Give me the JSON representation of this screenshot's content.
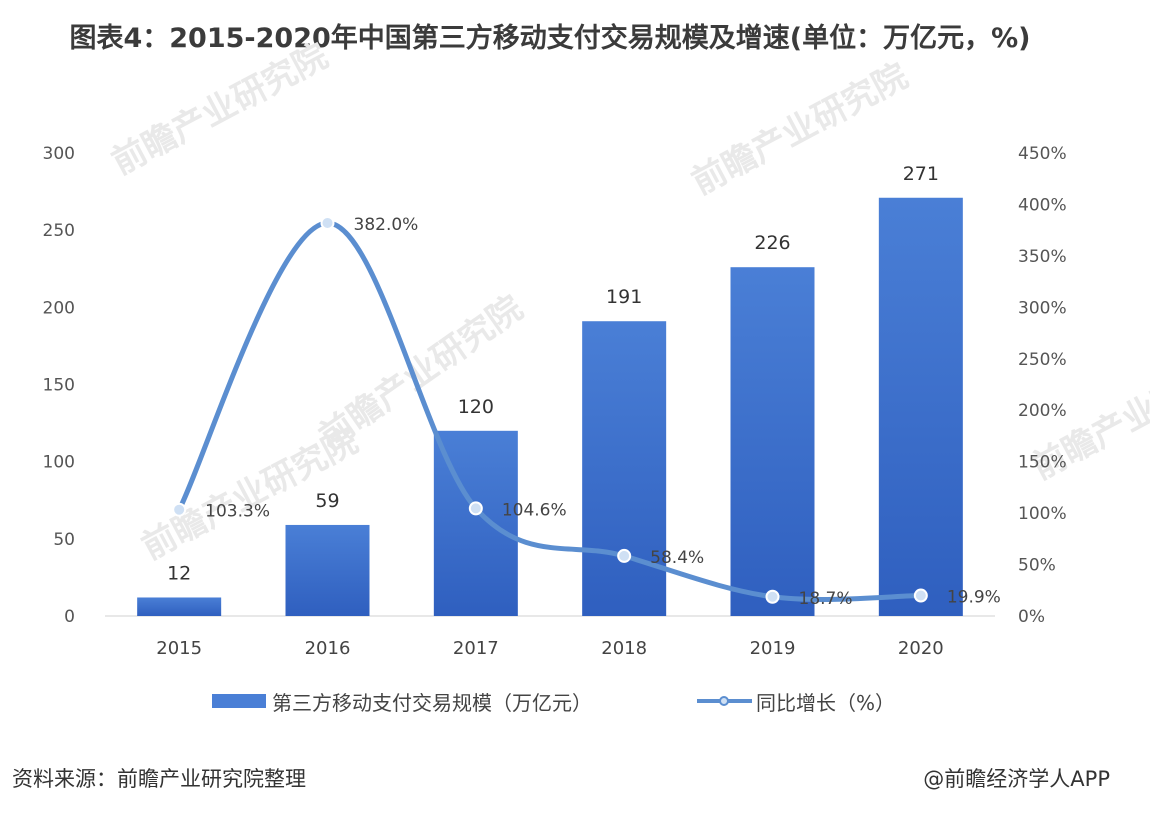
{
  "title": "图表4：2015-2020年中国第三方移动支付交易规模及增速(单位：万亿元，%)",
  "watermark": "前瞻产业研究院",
  "source": "资料来源：前瞻产业研究院整理",
  "credit": "@前瞻经济学人APP",
  "colors": {
    "bar": "#4a7fd6",
    "bar_dark": "#2f5fbf",
    "line": "#5b8ed0",
    "marker_fill": "#cfe0f4"
  },
  "chart_data": {
    "type": "bar+line",
    "categories": [
      "2015",
      "2016",
      "2017",
      "2018",
      "2019",
      "2020"
    ],
    "series": [
      {
        "name": "第三方移动支付交易规模（万亿元）",
        "type": "bar",
        "axis": "left",
        "values": [
          12,
          59,
          120,
          191,
          226,
          271
        ],
        "labels": [
          "12",
          "59",
          "120",
          "191",
          "226",
          "271"
        ]
      },
      {
        "name": "同比增长（%）",
        "type": "line",
        "axis": "right",
        "values": [
          103.3,
          382.0,
          104.6,
          58.4,
          18.7,
          19.9
        ],
        "labels": [
          "103.3%",
          "382.0%",
          "104.6%",
          "58.4%",
          "18.7%",
          "19.9%"
        ]
      }
    ],
    "y_left": {
      "range": [
        0,
        300
      ],
      "ticks": [
        "0",
        "50",
        "100",
        "150",
        "200",
        "250",
        "300"
      ]
    },
    "y_right": {
      "range": [
        0,
        450
      ],
      "ticks": [
        "0%",
        "50%",
        "100%",
        "150%",
        "200%",
        "250%",
        "300%",
        "350%",
        "400%",
        "450%"
      ]
    },
    "grid": false,
    "legend_position": "bottom"
  }
}
